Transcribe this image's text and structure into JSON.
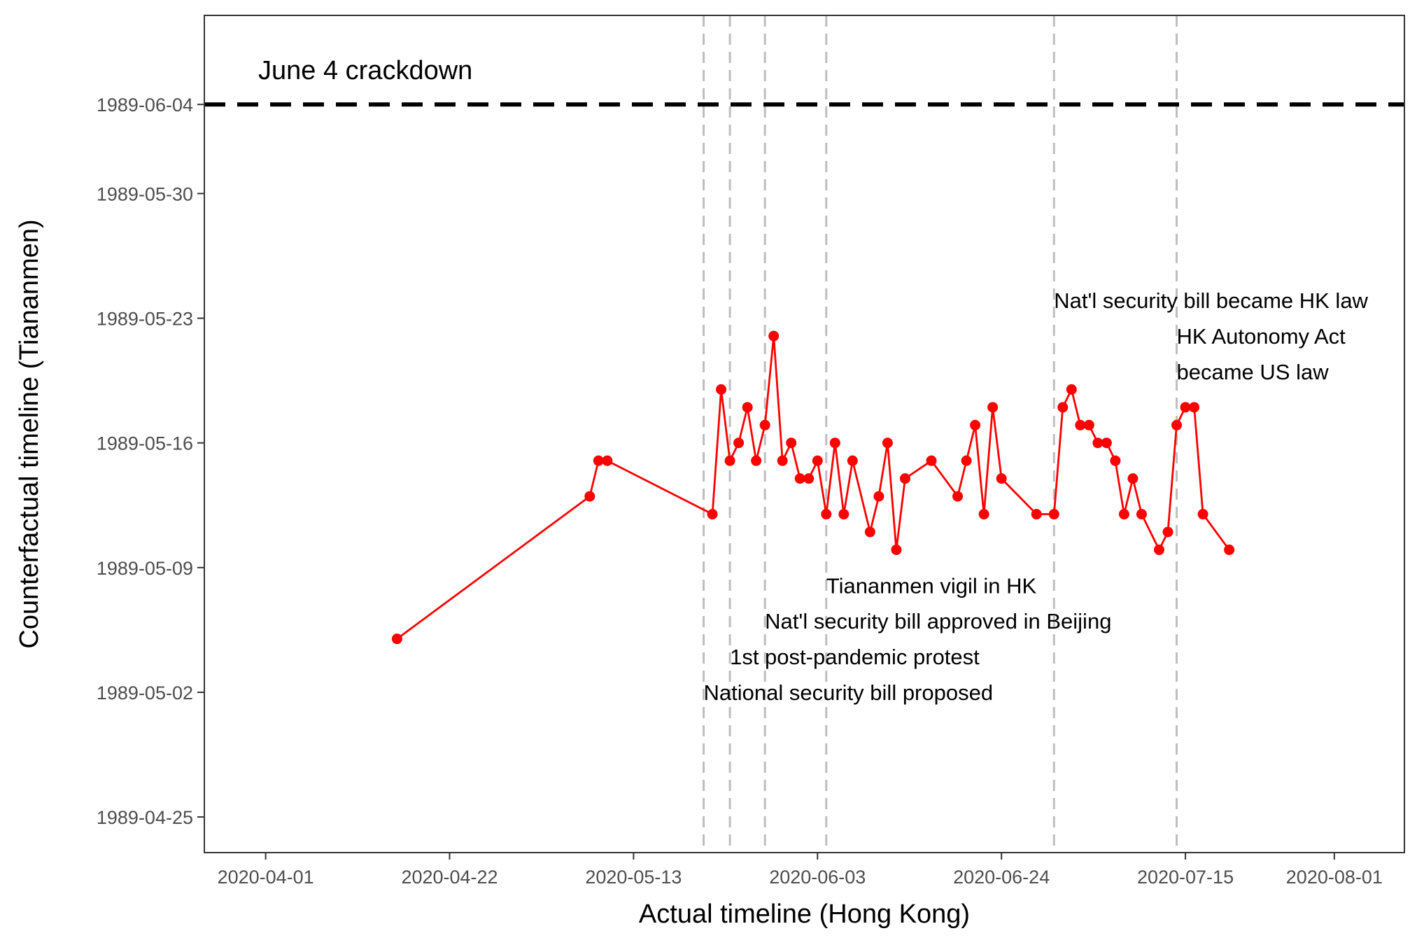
{
  "chart_data": {
    "type": "line",
    "xlabel": "Actual timeline (Hong Kong)",
    "ylabel": "Counterfactual timeline (Tiananmen)",
    "x_ticks": [
      "2020-04-01",
      "2020-04-22",
      "2020-05-13",
      "2020-06-03",
      "2020-06-24",
      "2020-07-15",
      "2020-08-01"
    ],
    "y_ticks": [
      "1989-04-25",
      "1989-05-02",
      "1989-05-09",
      "1989-05-16",
      "1989-05-23",
      "1989-05-30",
      "1989-06-04"
    ],
    "xlim": [
      "2020-03-25",
      "2020-08-09"
    ],
    "ylim": [
      "1989-04-23",
      "1989-06-09"
    ],
    "grid": false,
    "series": [
      {
        "color": "#ff0000",
        "points": [
          {
            "x": "2020-04-16",
            "y": "1989-05-05"
          },
          {
            "x": "2020-05-08",
            "y": "1989-05-13"
          },
          {
            "x": "2020-05-09",
            "y": "1989-05-15"
          },
          {
            "x": "2020-05-10",
            "y": "1989-05-15"
          },
          {
            "x": "2020-05-22",
            "y": "1989-05-12"
          },
          {
            "x": "2020-05-23",
            "y": "1989-05-19"
          },
          {
            "x": "2020-05-24",
            "y": "1989-05-15"
          },
          {
            "x": "2020-05-25",
            "y": "1989-05-16"
          },
          {
            "x": "2020-05-26",
            "y": "1989-05-18"
          },
          {
            "x": "2020-05-27",
            "y": "1989-05-15"
          },
          {
            "x": "2020-05-28",
            "y": "1989-05-17"
          },
          {
            "x": "2020-05-29",
            "y": "1989-05-22"
          },
          {
            "x": "2020-05-30",
            "y": "1989-05-15"
          },
          {
            "x": "2020-05-31",
            "y": "1989-05-16"
          },
          {
            "x": "2020-06-01",
            "y": "1989-05-14"
          },
          {
            "x": "2020-06-02",
            "y": "1989-05-14"
          },
          {
            "x": "2020-06-03",
            "y": "1989-05-15"
          },
          {
            "x": "2020-06-04",
            "y": "1989-05-12"
          },
          {
            "x": "2020-06-05",
            "y": "1989-05-16"
          },
          {
            "x": "2020-06-06",
            "y": "1989-05-12"
          },
          {
            "x": "2020-06-07",
            "y": "1989-05-15"
          },
          {
            "x": "2020-06-09",
            "y": "1989-05-11"
          },
          {
            "x": "2020-06-10",
            "y": "1989-05-13"
          },
          {
            "x": "2020-06-11",
            "y": "1989-05-16"
          },
          {
            "x": "2020-06-12",
            "y": "1989-05-10"
          },
          {
            "x": "2020-06-13",
            "y": "1989-05-14"
          },
          {
            "x": "2020-06-16",
            "y": "1989-05-15"
          },
          {
            "x": "2020-06-19",
            "y": "1989-05-13"
          },
          {
            "x": "2020-06-20",
            "y": "1989-05-15"
          },
          {
            "x": "2020-06-21",
            "y": "1989-05-17"
          },
          {
            "x": "2020-06-22",
            "y": "1989-05-12"
          },
          {
            "x": "2020-06-23",
            "y": "1989-05-18"
          },
          {
            "x": "2020-06-24",
            "y": "1989-05-14"
          },
          {
            "x": "2020-06-28",
            "y": "1989-05-12"
          },
          {
            "x": "2020-06-30",
            "y": "1989-05-12"
          },
          {
            "x": "2020-07-01",
            "y": "1989-05-18"
          },
          {
            "x": "2020-07-02",
            "y": "1989-05-19"
          },
          {
            "x": "2020-07-03",
            "y": "1989-05-17"
          },
          {
            "x": "2020-07-04",
            "y": "1989-05-17"
          },
          {
            "x": "2020-07-05",
            "y": "1989-05-16"
          },
          {
            "x": "2020-07-06",
            "y": "1989-05-16"
          },
          {
            "x": "2020-07-07",
            "y": "1989-05-15"
          },
          {
            "x": "2020-07-08",
            "y": "1989-05-12"
          },
          {
            "x": "2020-07-09",
            "y": "1989-05-14"
          },
          {
            "x": "2020-07-10",
            "y": "1989-05-12"
          },
          {
            "x": "2020-07-12",
            "y": "1989-05-10"
          },
          {
            "x": "2020-07-13",
            "y": "1989-05-11"
          },
          {
            "x": "2020-07-14",
            "y": "1989-05-17"
          },
          {
            "x": "2020-07-15",
            "y": "1989-05-18"
          },
          {
            "x": "2020-07-16",
            "y": "1989-05-18"
          },
          {
            "x": "2020-07-17",
            "y": "1989-05-12"
          },
          {
            "x": "2020-07-20",
            "y": "1989-05-10"
          }
        ]
      }
    ],
    "hlines": [
      {
        "y": "1989-06-04",
        "label": "June 4 crackdown",
        "style": "dashed",
        "color": "#000000"
      }
    ],
    "vlines": [
      {
        "x": "2020-05-21",
        "style": "dashed",
        "color": "#bebebe"
      },
      {
        "x": "2020-05-24",
        "style": "dashed",
        "color": "#bebebe"
      },
      {
        "x": "2020-05-28",
        "style": "dashed",
        "color": "#bebebe"
      },
      {
        "x": "2020-06-04",
        "style": "dashed",
        "color": "#bebebe"
      },
      {
        "x": "2020-06-30",
        "style": "dashed",
        "color": "#bebebe"
      },
      {
        "x": "2020-07-14",
        "style": "dashed",
        "color": "#bebebe"
      }
    ],
    "annotations": [
      {
        "text": "National security bill proposed",
        "x": "2020-05-21",
        "y": "1989-05-02"
      },
      {
        "text": "1st post-pandemic protest",
        "x": "2020-05-24",
        "y": "1989-05-04"
      },
      {
        "text": "Nat'l security bill approved in Beijing",
        "x": "2020-05-28",
        "y": "1989-05-06"
      },
      {
        "text": "Tiananmen vigil in HK",
        "x": "2020-06-04",
        "y": "1989-05-08"
      },
      {
        "text": "Nat'l security bill became HK law",
        "x": "2020-06-30",
        "y": "1989-05-24"
      },
      {
        "text": "HK Autonomy Act",
        "x": "2020-07-14",
        "y": "1989-05-22"
      },
      {
        "text": "became US law",
        "x": "2020-07-14",
        "y": "1989-05-20"
      }
    ]
  }
}
